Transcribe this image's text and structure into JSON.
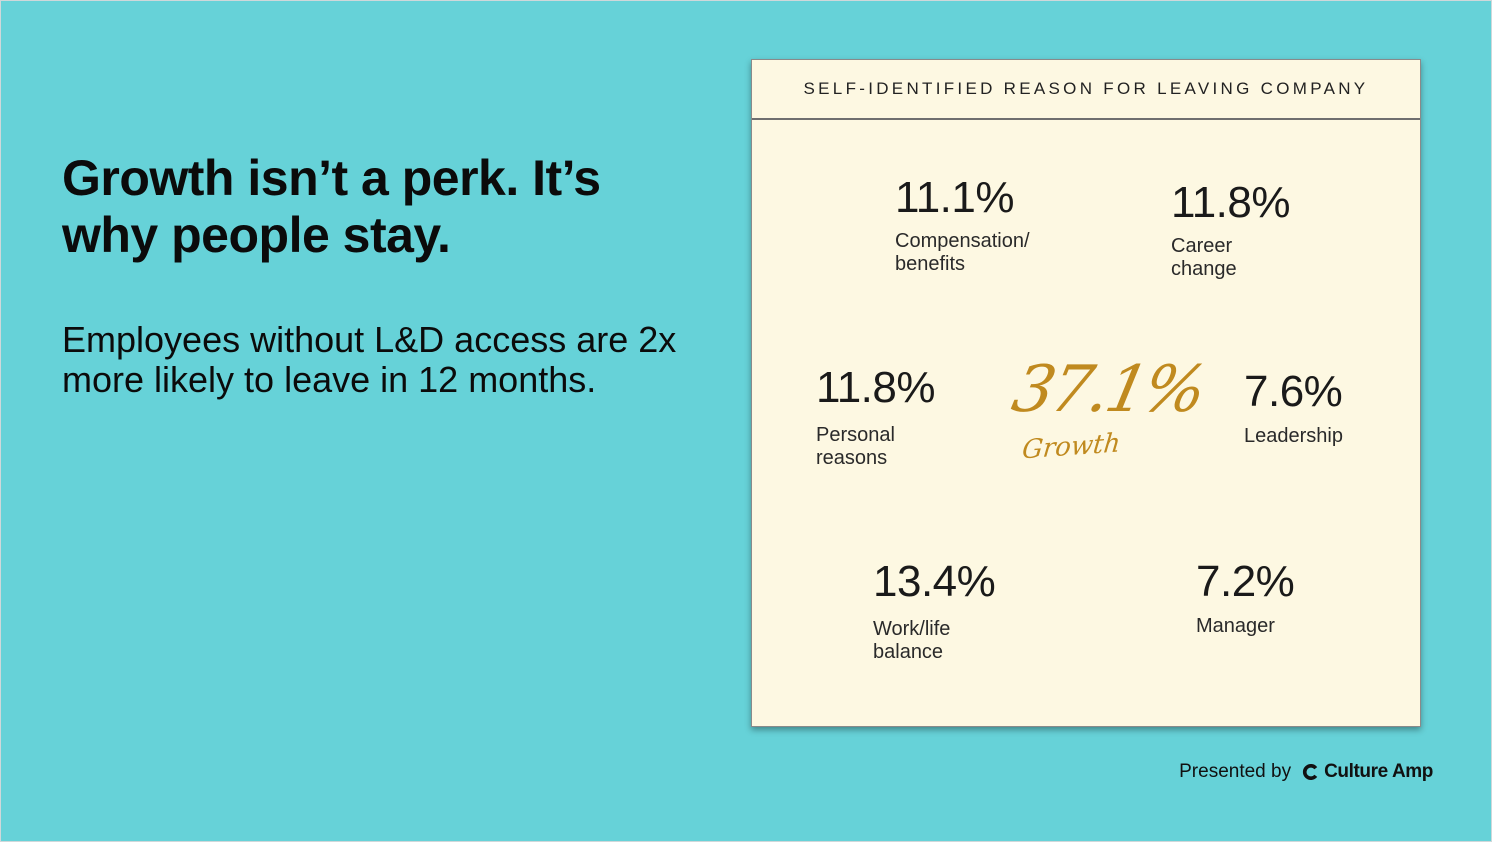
{
  "slide": {
    "headline": "Growth isn’t a perk. It’s why people stay.",
    "subtext": "Employees without L&D access are 2x more likely to leave in 12 months."
  },
  "card": {
    "title": "SELF-IDENTIFIED REASON FOR LEAVING COMPANY",
    "stats": [
      {
        "value": "11.1%",
        "label": "Compensation/\nbenefits"
      },
      {
        "value": "11.8%",
        "label": "Career\nchange"
      },
      {
        "value": "11.8%",
        "label": "Personal\nreasons"
      },
      {
        "value": "7.6%",
        "label": "Leadership"
      },
      {
        "value": "13.4%",
        "label": "Work/life\nbalance"
      },
      {
        "value": "7.2%",
        "label": "Manager"
      }
    ],
    "highlight": {
      "value": "37.1%",
      "label": "Growth",
      "color": "#c08a1f"
    }
  },
  "footer": {
    "presented_by": "Presented by",
    "brand": "Culture Amp",
    "brand_icon": "culture-amp-logo-icon"
  },
  "colors": {
    "background": "#66d2d8",
    "card": "#fdf8e2"
  }
}
